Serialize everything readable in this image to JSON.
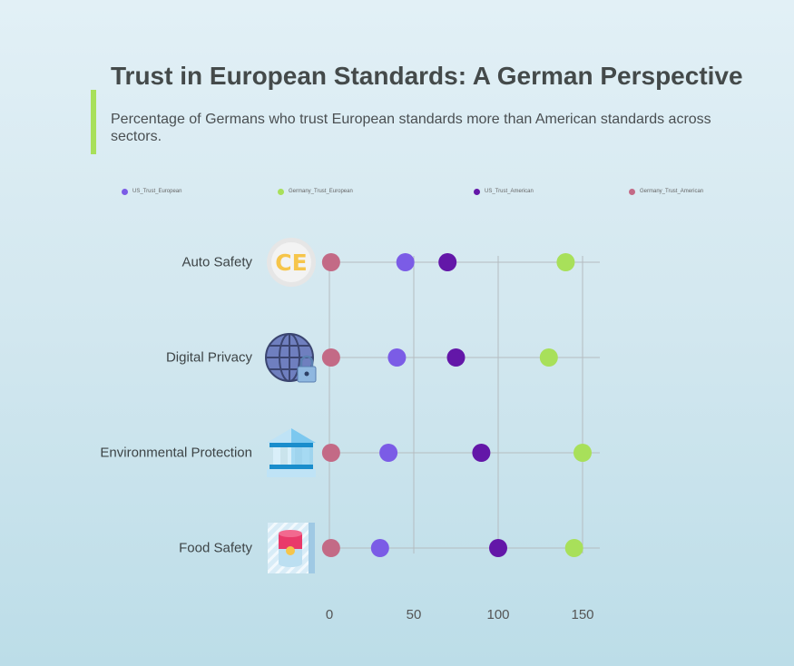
{
  "title": "Trust in European Standards: A German Perspective",
  "subtitle": "Percentage of Germans who trust European standards more than American standards across sectors.",
  "colors": {
    "accent": "#a8e05a",
    "US_Trust_European": "#7b5ce6",
    "Germany_Trust_European": "#a8e05a",
    "US_Trust_American": "#6317a8",
    "Germany_Trust_American": "#c36a86"
  },
  "chart_data": {
    "type": "scatter",
    "categories": [
      "Auto Safety",
      "Digital Privacy",
      "Environmental Protection",
      "Food Safety"
    ],
    "icons": [
      "ce-mark-icon",
      "globe-lock-icon",
      "government-building-icon",
      "food-can-icon"
    ],
    "series": [
      {
        "name": "US_Trust_European",
        "values": [
          45,
          40,
          35,
          30
        ]
      },
      {
        "name": "Germany_Trust_European",
        "values": [
          140,
          130,
          150,
          145
        ]
      },
      {
        "name": "US_Trust_American",
        "values": [
          70,
          75,
          90,
          100
        ]
      },
      {
        "name": "Germany_Trust_American",
        "values": [
          1,
          1,
          1,
          1
        ]
      }
    ],
    "x_ticks": [
      "0",
      "50",
      "100",
      "150"
    ],
    "xlim": [
      0,
      160
    ],
    "grid": true,
    "legend_position": "top"
  }
}
